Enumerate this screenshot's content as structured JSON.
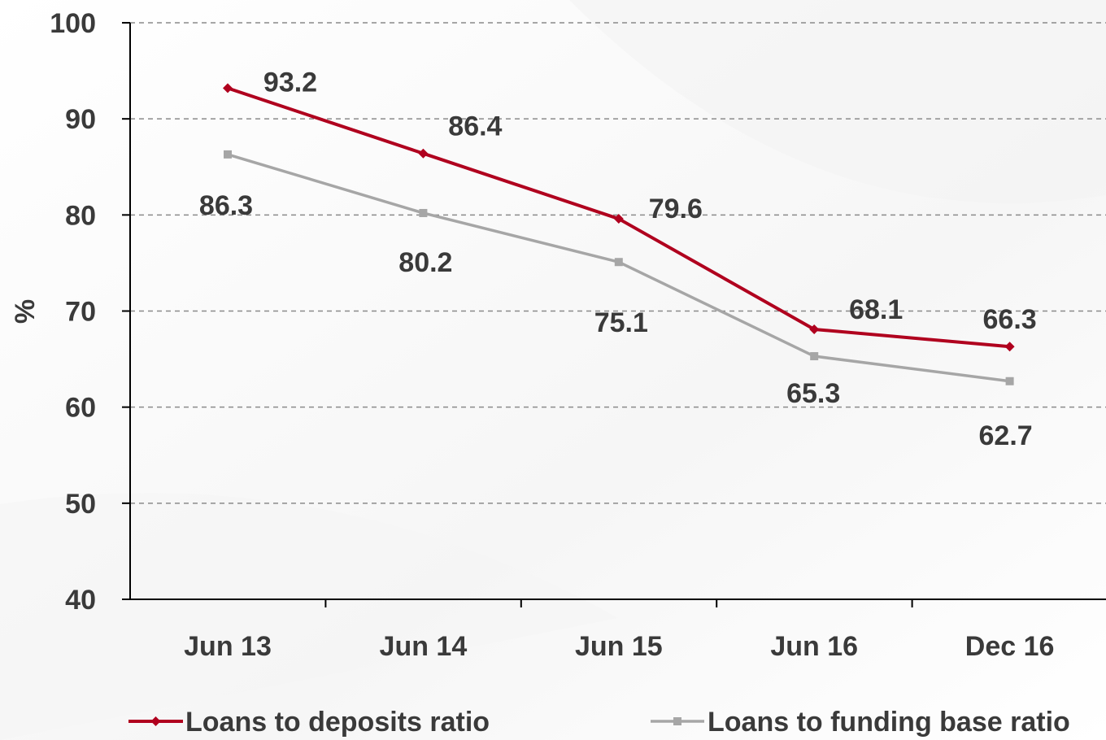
{
  "chart_data": {
    "type": "line",
    "categories": [
      "Jun 13",
      "Jun 14",
      "Jun 15",
      "Jun 16",
      "Dec 16"
    ],
    "series": [
      {
        "name": "Loans to deposits ratio",
        "values": [
          93.2,
          86.4,
          79.6,
          68.1,
          66.3
        ],
        "color": "#b0001e",
        "marker": "diamond"
      },
      {
        "name": "Loans to funding base ratio",
        "values": [
          86.3,
          80.2,
          75.1,
          65.3,
          62.7
        ],
        "color": "#a6a6a6",
        "marker": "square"
      }
    ],
    "title": "",
    "xlabel": "",
    "ylabel": "%",
    "ylim": [
      40,
      100
    ],
    "yticks": [
      40,
      50,
      60,
      70,
      80,
      90,
      100
    ],
    "grid": true,
    "legend_position": "bottom"
  }
}
